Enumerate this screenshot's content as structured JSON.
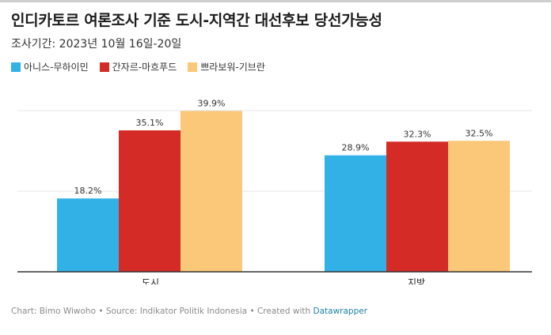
{
  "title": "인디카토르 여론조사 기준 도시-지역간 대선후보 당선가능성",
  "subtitle": "조사기간: 2023년 10월 16일-20일",
  "colors": {
    "series_1": "#32b1e6",
    "series_2": "#d42b27",
    "series_3": "#fbc778",
    "gridline": "#e6e6e6",
    "axis": "#333333"
  },
  "footer": {
    "source_text": "Chart: Bimo Wiwoho • Source: Indikator Politik Indonesia • Created with ",
    "tool_link": "Datawrapper"
  },
  "chart_data": {
    "type": "bar",
    "categories": [
      "도시",
      "지방"
    ],
    "series": [
      {
        "name": "아니스-무하이민",
        "values": [
          18.2,
          28.9
        ],
        "labels": [
          "18.2%",
          "28.9%"
        ]
      },
      {
        "name": "간자르-마흐푸드",
        "values": [
          35.1,
          32.3
        ],
        "labels": [
          "35.1%",
          "32.3%"
        ]
      },
      {
        "name": "쁘라보워-기브란",
        "values": [
          39.9,
          32.5
        ],
        "labels": [
          "39.9%",
          "32.5%"
        ]
      }
    ],
    "ylim": [
      0,
      40
    ],
    "grid": true,
    "legend": "top-left"
  }
}
